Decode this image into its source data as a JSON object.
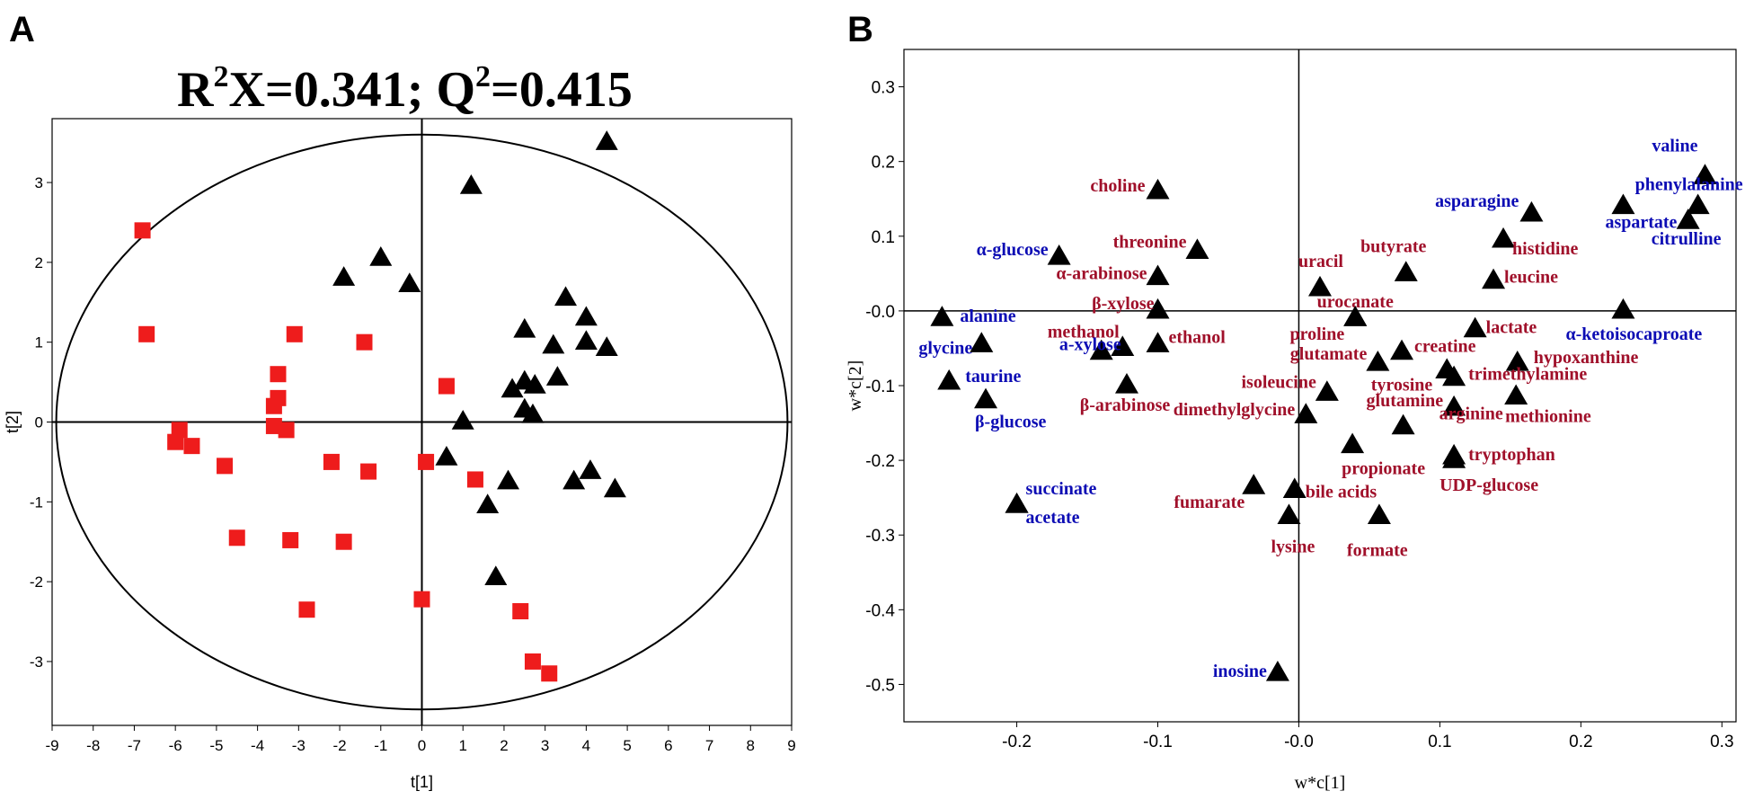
{
  "chart_data": [
    {
      "panel": "A",
      "type": "scatter",
      "title_parts": {
        "r": "R",
        "sup1": "2",
        "x_eq": "X=0.341; Q",
        "sup2": "2",
        "tail": "=0.415"
      },
      "xlabel": "t[1]",
      "ylabel": "t[2]",
      "xlim": [
        -9,
        9
      ],
      "ylim": [
        -3.8,
        3.8
      ],
      "xticks": [
        "-9",
        "-8",
        "-7",
        "-6",
        "-5",
        "-4",
        "-3",
        "-2",
        "-1",
        "0",
        "1",
        "2",
        "3",
        "4",
        "5",
        "6",
        "7",
        "8",
        "9"
      ],
      "yticks": [
        {
          "v": 3,
          "label": "3"
        },
        {
          "v": 2,
          "label": "2"
        },
        {
          "v": 1,
          "label": "1"
        },
        {
          "v": 0,
          "label": "0"
        },
        {
          "v": -1,
          "label": "-1"
        },
        {
          "v": -2,
          "label": "-2"
        },
        {
          "v": -3,
          "label": "-3"
        }
      ],
      "ellipse": {
        "rx": 8.9,
        "ry": 3.6
      },
      "colors": {
        "group1": "#ee1c1c",
        "group2": "#000000"
      },
      "series": [
        {
          "name": "group1",
          "marker": "square",
          "points": [
            [
              -6.8,
              2.4
            ],
            [
              -6.7,
              1.1
            ],
            [
              -3.1,
              1.1
            ],
            [
              -1.4,
              1.0
            ],
            [
              -3.5,
              0.6
            ],
            [
              -3.5,
              0.3
            ],
            [
              -3.6,
              0.2
            ],
            [
              -3.6,
              -0.05
            ],
            [
              -3.3,
              -0.1
            ],
            [
              -5.9,
              -0.1
            ],
            [
              -6.0,
              -0.25
            ],
            [
              -5.6,
              -0.3
            ],
            [
              -4.8,
              -0.55
            ],
            [
              -2.2,
              -0.5
            ],
            [
              -1.3,
              -0.62
            ],
            [
              0.6,
              0.45
            ],
            [
              0.1,
              -0.5
            ],
            [
              1.3,
              -0.72
            ],
            [
              -4.5,
              -1.45
            ],
            [
              -3.2,
              -1.48
            ],
            [
              -1.9,
              -1.5
            ],
            [
              -2.8,
              -2.35
            ],
            [
              0.0,
              -2.22
            ],
            [
              2.4,
              -2.37
            ],
            [
              2.7,
              -3.0
            ],
            [
              3.1,
              -3.15
            ]
          ]
        },
        {
          "name": "group2",
          "marker": "triangle",
          "points": [
            [
              4.5,
              3.5
            ],
            [
              1.2,
              2.95
            ],
            [
              -1.0,
              2.05
            ],
            [
              -1.9,
              1.8
            ],
            [
              -0.3,
              1.72
            ],
            [
              3.5,
              1.55
            ],
            [
              4.0,
              1.3
            ],
            [
              2.5,
              1.15
            ],
            [
              4.0,
              1.0
            ],
            [
              4.5,
              0.92
            ],
            [
              3.2,
              0.95
            ],
            [
              2.5,
              0.5
            ],
            [
              3.3,
              0.55
            ],
            [
              2.2,
              0.4
            ],
            [
              2.75,
              0.45
            ],
            [
              2.5,
              0.15
            ],
            [
              2.7,
              0.08
            ],
            [
              1.0,
              0.0
            ],
            [
              0.6,
              -0.45
            ],
            [
              4.1,
              -0.62
            ],
            [
              3.7,
              -0.75
            ],
            [
              2.1,
              -0.75
            ],
            [
              4.7,
              -0.85
            ],
            [
              1.6,
              -1.05
            ],
            [
              1.8,
              -1.95
            ]
          ]
        }
      ]
    },
    {
      "panel": "B",
      "type": "scatter",
      "xlabel": "w*c[1]",
      "ylabel": "w*c[2]",
      "xlim": [
        -0.28,
        0.31
      ],
      "ylim": [
        -0.55,
        0.35
      ],
      "xticks": [
        {
          "v": -0.2,
          "label": "-0.2"
        },
        {
          "v": -0.1,
          "label": "-0.1"
        },
        {
          "v": 0.0,
          "label": "-0.0"
        },
        {
          "v": 0.1,
          "label": "0.1"
        },
        {
          "v": 0.2,
          "label": "0.2"
        },
        {
          "v": 0.3,
          "label": "0.3"
        }
      ],
      "yticks": [
        {
          "v": 0.3,
          "label": "0.3"
        },
        {
          "v": 0.2,
          "label": "0.2"
        },
        {
          "v": 0.1,
          "label": "0.1"
        },
        {
          "v": 0.0,
          "label": "-0.0"
        },
        {
          "v": -0.1,
          "label": "-0.1"
        },
        {
          "v": -0.2,
          "label": "-0.2"
        },
        {
          "v": -0.3,
          "label": "-0.3"
        },
        {
          "v": -0.4,
          "label": "-0.4"
        },
        {
          "v": -0.5,
          "label": "-0.5"
        }
      ],
      "colors": {
        "red": "#a0102a",
        "blue": "#0c0cb4",
        "marker": "#000000"
      },
      "metabolites": [
        {
          "name": "valine",
          "x": 0.288,
          "y": 0.18,
          "color": "blue"
        },
        {
          "name": "phenylalanine",
          "x": 0.283,
          "y": 0.14,
          "color": "blue"
        },
        {
          "name": "citrulline",
          "x": 0.276,
          "y": 0.12,
          "color": "blue"
        },
        {
          "name": "aspartate",
          "x": 0.23,
          "y": 0.14,
          "color": "blue"
        },
        {
          "name": "asparagine",
          "x": 0.165,
          "y": 0.13,
          "color": "blue"
        },
        {
          "name": "histidine",
          "x": 0.145,
          "y": 0.095,
          "color": "red"
        },
        {
          "name": "leucine",
          "x": 0.138,
          "y": 0.04,
          "color": "red"
        },
        {
          "name": "butyrate",
          "x": 0.076,
          "y": 0.05,
          "color": "red"
        },
        {
          "name": "uracil",
          "x": 0.015,
          "y": 0.03,
          "color": "red"
        },
        {
          "name": "choline",
          "x": -0.1,
          "y": 0.16,
          "color": "red"
        },
        {
          "name": "threonine",
          "x": -0.072,
          "y": 0.08,
          "color": "red"
        },
        {
          "name": "α-glucose",
          "x": -0.17,
          "y": 0.072,
          "color": "blue"
        },
        {
          "name": "α-arabinose",
          "x": -0.1,
          "y": 0.045,
          "color": "red"
        },
        {
          "name": "β-xylose",
          "x": -0.1,
          "y": 0.0,
          "color": "red"
        },
        {
          "name": "urocanate",
          "x": 0.04,
          "y": -0.01,
          "color": "red"
        },
        {
          "name": "proline",
          "x": 0.04,
          "y": -0.01,
          "color": "red"
        },
        {
          "name": "lactate",
          "x": 0.125,
          "y": -0.025,
          "color": "red"
        },
        {
          "name": "α-ketoisocaproate",
          "x": 0.23,
          "y": 0.0,
          "color": "blue"
        },
        {
          "name": "alanine",
          "x": -0.253,
          "y": -0.01,
          "color": "blue"
        },
        {
          "name": "glycine",
          "x": -0.225,
          "y": -0.045,
          "color": "blue"
        },
        {
          "name": "methanol",
          "x": -0.14,
          "y": -0.055,
          "color": "red"
        },
        {
          "name": "a-xylose",
          "x": -0.125,
          "y": -0.05,
          "color": "blue"
        },
        {
          "name": "ethanol",
          "x": -0.1,
          "y": -0.045,
          "color": "red"
        },
        {
          "name": "creatine",
          "x": 0.073,
          "y": -0.055,
          "color": "red"
        },
        {
          "name": "glutamate",
          "x": 0.056,
          "y": -0.07,
          "color": "red"
        },
        {
          "name": "tyrosine",
          "x": 0.105,
          "y": -0.08,
          "color": "red"
        },
        {
          "name": "hypoxanthine",
          "x": 0.155,
          "y": -0.07,
          "color": "red"
        },
        {
          "name": "trimethylamine",
          "x": 0.11,
          "y": -0.09,
          "color": "red"
        },
        {
          "name": "taurine",
          "x": -0.248,
          "y": -0.095,
          "color": "blue"
        },
        {
          "name": "β-arabinose",
          "x": -0.122,
          "y": -0.1,
          "color": "red"
        },
        {
          "name": "isoleucine",
          "x": 0.02,
          "y": -0.11,
          "color": "red"
        },
        {
          "name": "glutamine",
          "x": 0.11,
          "y": -0.13,
          "color": "red"
        },
        {
          "name": "methionine",
          "x": 0.154,
          "y": -0.115,
          "color": "red"
        },
        {
          "name": "β-glucose",
          "x": -0.222,
          "y": -0.12,
          "color": "blue"
        },
        {
          "name": "dimethylglycine",
          "x": 0.005,
          "y": -0.14,
          "color": "red"
        },
        {
          "name": "arginine",
          "x": 0.074,
          "y": -0.155,
          "color": "red"
        },
        {
          "name": "propionate",
          "x": 0.038,
          "y": -0.18,
          "color": "red"
        },
        {
          "name": "tryptophan",
          "x": 0.11,
          "y": -0.195,
          "color": "red"
        },
        {
          "name": "UDP-glucose",
          "x": 0.11,
          "y": -0.2,
          "color": "red"
        },
        {
          "name": "bile acids",
          "x": -0.003,
          "y": -0.24,
          "color": "red"
        },
        {
          "name": "fumarate",
          "x": -0.032,
          "y": -0.235,
          "color": "red"
        },
        {
          "name": "succinate",
          "x": -0.2,
          "y": -0.26,
          "color": "blue"
        },
        {
          "name": "acetate",
          "x": -0.2,
          "y": -0.26,
          "color": "blue"
        },
        {
          "name": "lysine",
          "x": -0.007,
          "y": -0.275,
          "color": "red"
        },
        {
          "name": "formate",
          "x": 0.057,
          "y": -0.275,
          "color": "red"
        },
        {
          "name": "inosine",
          "x": -0.015,
          "y": -0.485,
          "color": "blue"
        }
      ]
    }
  ],
  "panels": {
    "a_letter": "A",
    "b_letter": "B"
  }
}
